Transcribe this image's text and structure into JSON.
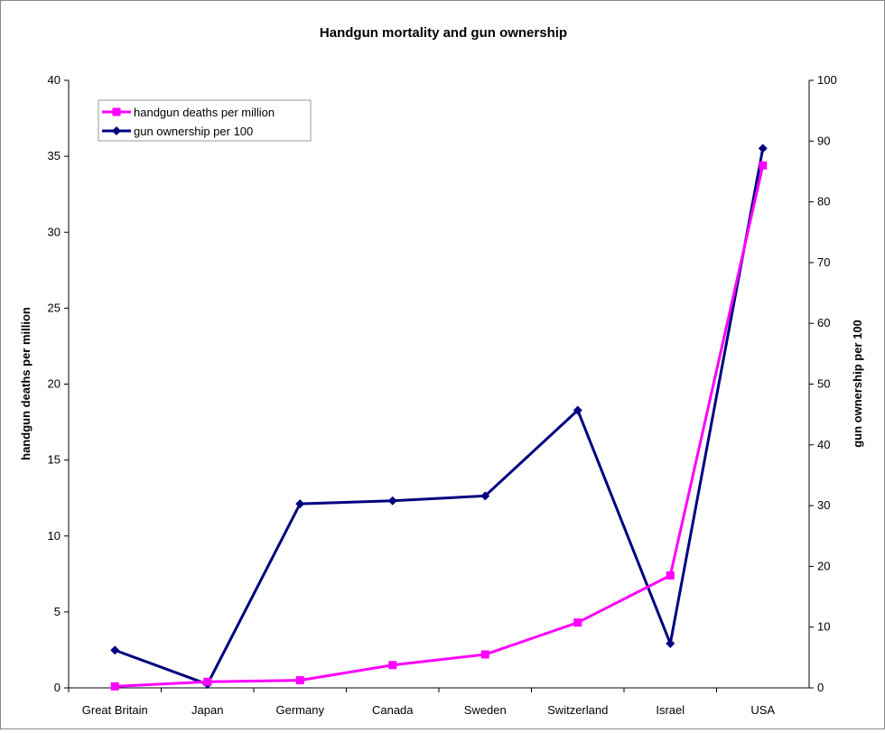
{
  "chart_data": {
    "type": "line",
    "title": "Handgun mortality and gun ownership",
    "xlabel": "",
    "ylabel": "handgun deaths per million",
    "y2label": "gun ownership per 100",
    "ylim": [
      0,
      40
    ],
    "y2lim": [
      0,
      100
    ],
    "yticks": [
      0,
      5,
      10,
      15,
      20,
      25,
      30,
      35,
      40
    ],
    "y2ticks": [
      0,
      10,
      20,
      30,
      40,
      50,
      60,
      70,
      80,
      90,
      100
    ],
    "categories": [
      "Great Britain",
      "Japan",
      "Germany",
      "Canada",
      "Sweden",
      "Switzerland",
      "Israel",
      "USA"
    ],
    "grid": false,
    "legend_position": "top-left",
    "series": [
      {
        "name": "handgun deaths per million",
        "axis": "left",
        "color": "#ff00ff",
        "marker": "square",
        "values": [
          0.1,
          0.4,
          0.5,
          1.5,
          2.2,
          4.3,
          7.4,
          34.4
        ]
      },
      {
        "name": "gun ownership per 100",
        "axis": "right",
        "color": "#000080",
        "marker": "diamond",
        "values": [
          6.2,
          0.6,
          30.3,
          30.8,
          31.6,
          45.7,
          7.3,
          88.8
        ]
      }
    ]
  }
}
